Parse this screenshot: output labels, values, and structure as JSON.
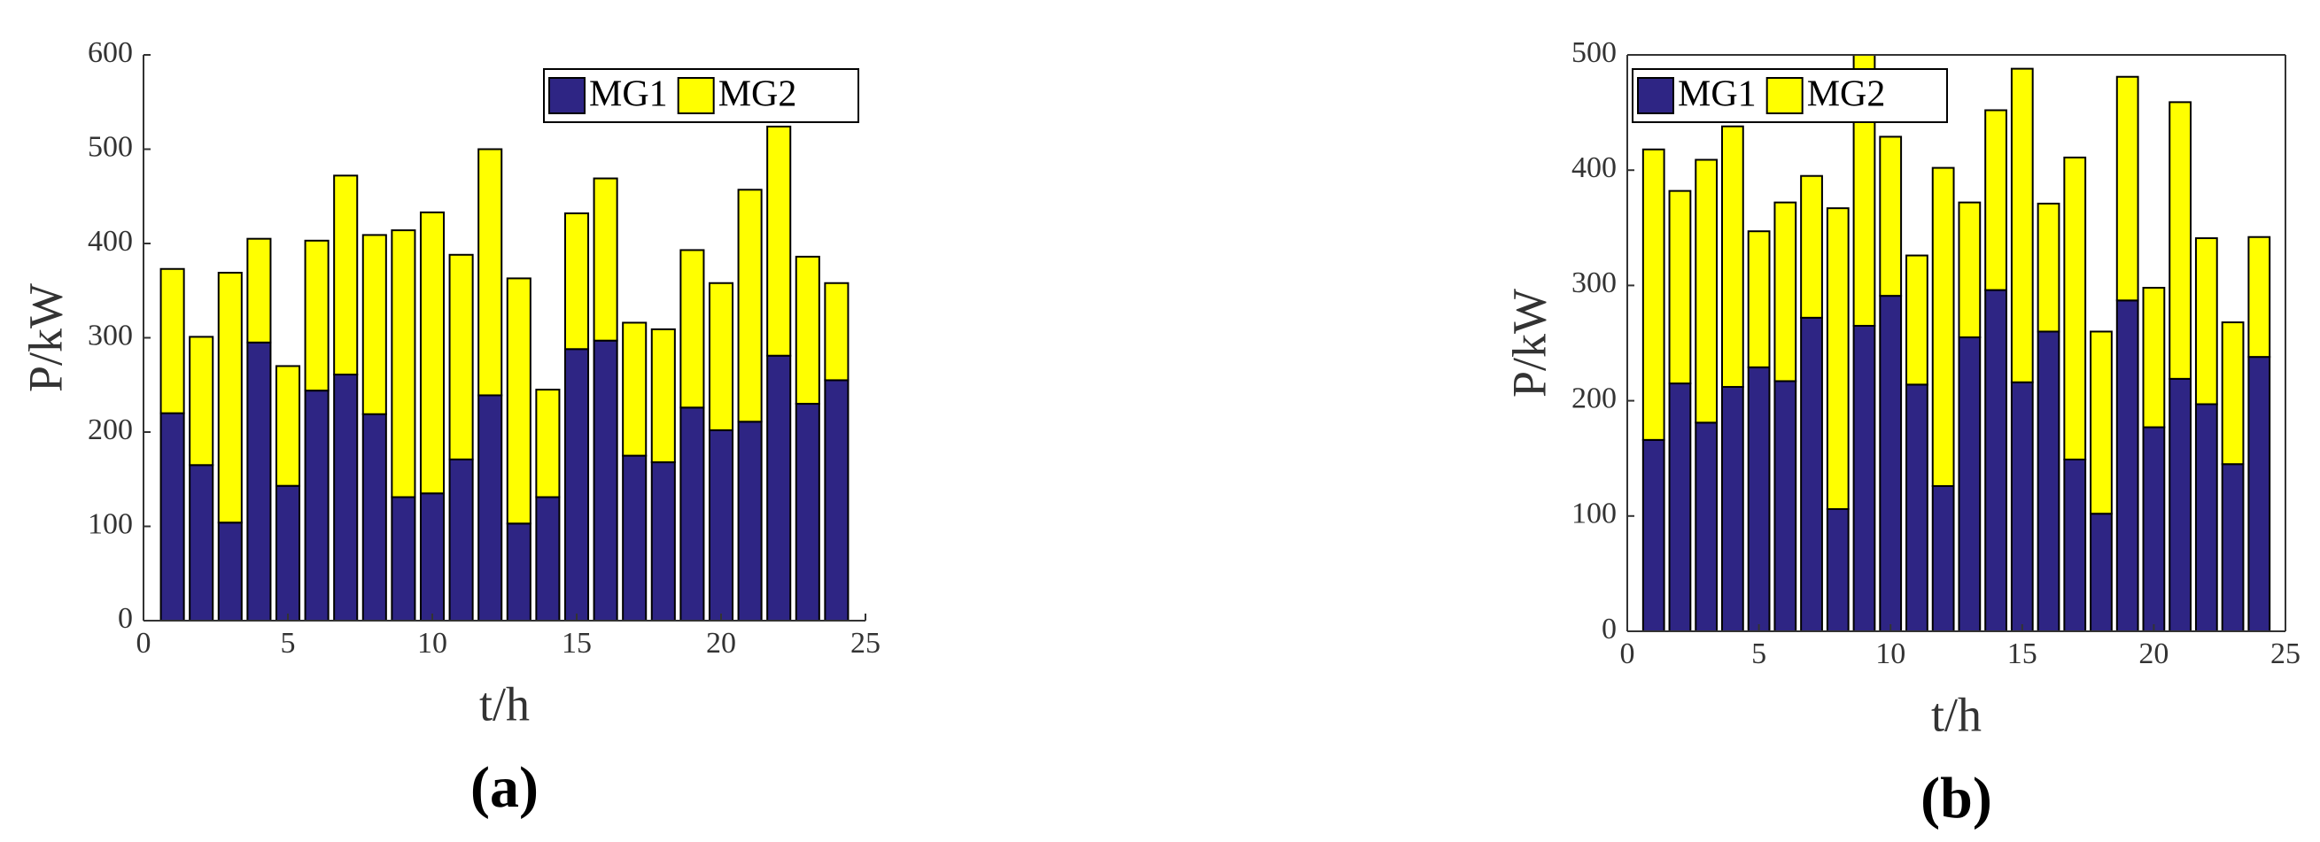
{
  "chart_data": [
    {
      "type": "stacked_bar",
      "label": "(a)",
      "xlabel": "t/h",
      "ylabel": "P/kW",
      "x": [
        1,
        2,
        3,
        4,
        5,
        6,
        7,
        8,
        9,
        10,
        11,
        12,
        13,
        14,
        15,
        16,
        17,
        18,
        19,
        20,
        21,
        22,
        23,
        24
      ],
      "series": [
        {
          "name": "MG1",
          "color": "#2e2584",
          "values": [
            220,
            165,
            104,
            295,
            143,
            244,
            261,
            219,
            131,
            135,
            171,
            239,
            103,
            131,
            288,
            297,
            175,
            168,
            226,
            202,
            211,
            281,
            230,
            255
          ]
        },
        {
          "name": "MG2",
          "color": "#ffff00",
          "values": [
            153,
            136,
            265,
            110,
            127,
            159,
            211,
            190,
            283,
            298,
            217,
            261,
            260,
            114,
            144,
            172,
            141,
            141,
            167,
            156,
            246,
            243,
            156,
            103
          ]
        }
      ],
      "xlim": [
        0,
        25
      ],
      "xticks": [
        0,
        5,
        10,
        15,
        20,
        25
      ],
      "ylim": [
        0,
        600
      ],
      "yticks": [
        0,
        100,
        200,
        300,
        400,
        500,
        600
      ],
      "legend": "upper right",
      "box": false
    },
    {
      "type": "stacked_bar",
      "label": "(b)",
      "xlabel": "t/h",
      "ylabel": "P/kW",
      "x": [
        1,
        2,
        3,
        4,
        5,
        6,
        7,
        8,
        9,
        10,
        11,
        12,
        13,
        14,
        15,
        16,
        17,
        18,
        19,
        20,
        21,
        22,
        23,
        24
      ],
      "series": [
        {
          "name": "MG1",
          "color": "#2e2584",
          "values": [
            166,
            215,
            181,
            212,
            229,
            217,
            272,
            106,
            265,
            291,
            214,
            126,
            255,
            296,
            216,
            260,
            149,
            102,
            287,
            177,
            219,
            197,
            145,
            238
          ]
        },
        {
          "name": "MG2",
          "color": "#ffff00",
          "values": [
            252,
            167,
            228,
            226,
            118,
            155,
            123,
            261,
            235,
            138,
            112,
            276,
            117,
            156,
            272,
            111,
            262,
            158,
            194,
            121,
            240,
            144,
            123,
            104
          ]
        }
      ],
      "xlim": [
        0,
        25
      ],
      "xticks": [
        0,
        5,
        10,
        15,
        20,
        25
      ],
      "ylim": [
        0,
        500
      ],
      "yticks": [
        0,
        100,
        200,
        300,
        400,
        500
      ],
      "legend": "upper left",
      "box": true
    }
  ]
}
